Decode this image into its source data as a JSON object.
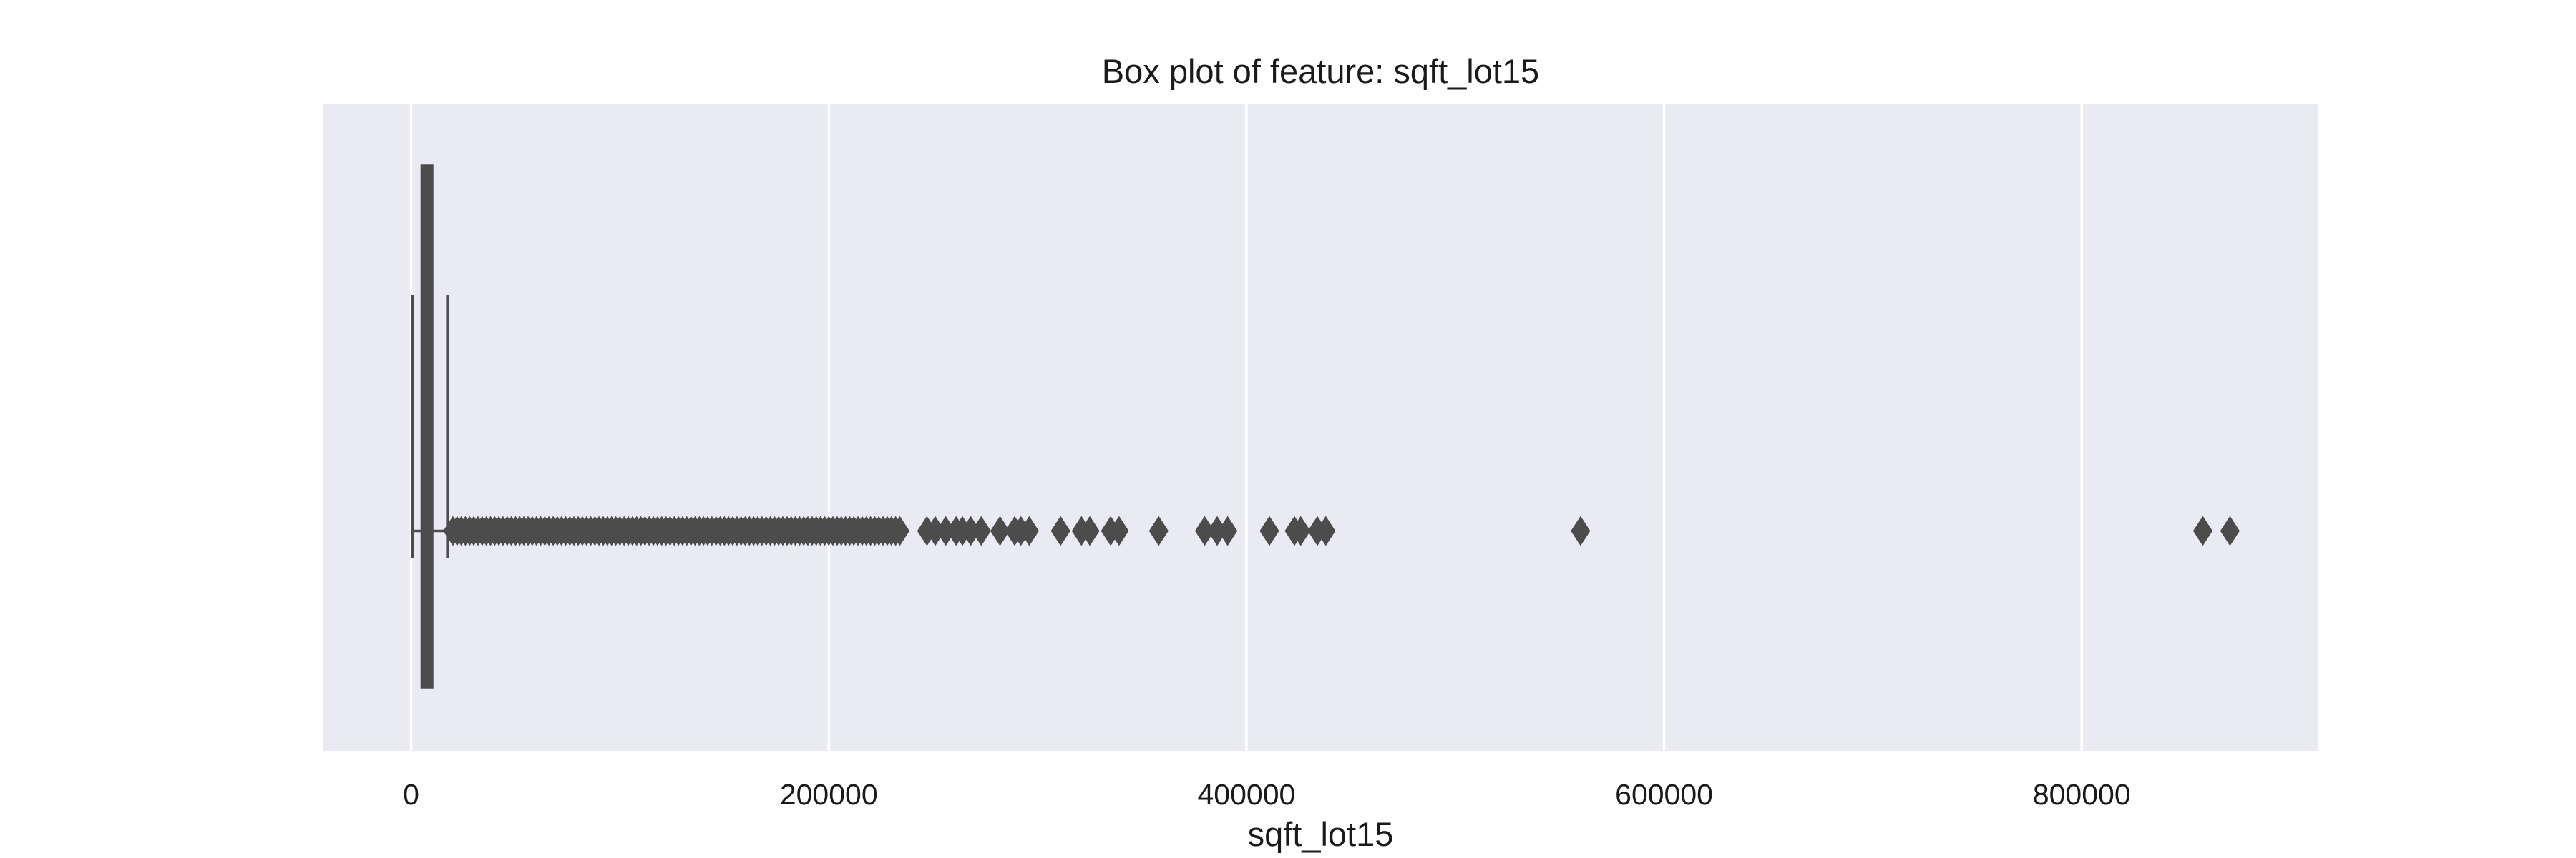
{
  "chart_data": {
    "type": "box",
    "title": "Box plot of feature: sqft_lot15",
    "xlabel": "sqft_lot15",
    "ylabel": "",
    "xlim": [
      -42000,
      913000
    ],
    "xticks": [
      0,
      200000,
      400000,
      600000,
      800000
    ],
    "xtick_labels": [
      "0",
      "200000",
      "400000",
      "600000",
      "800000"
    ],
    "grid": true,
    "orientation": "horizontal",
    "colors": {
      "plot_background": "#eaeaf2",
      "grid": "#ffffff",
      "box_fill": "#4c4c4c",
      "box_edge": "#4c4c4c",
      "outlier": "#4c4c4c",
      "text": "#1a1a1a"
    },
    "box": {
      "whisker_low": 651,
      "q1": 5100,
      "median": 7620,
      "q3": 10083,
      "whisker_high": 17500
    },
    "outliers": [
      20000,
      22000,
      24000,
      26000,
      28000,
      30000,
      32000,
      34000,
      36000,
      38000,
      40000,
      42000,
      44000,
      46000,
      48000,
      50000,
      52000,
      54000,
      56000,
      58000,
      60000,
      62000,
      64000,
      66000,
      68000,
      70000,
      72000,
      74000,
      76000,
      78000,
      80000,
      82000,
      84000,
      86000,
      88000,
      90000,
      92000,
      94000,
      96000,
      98000,
      100000,
      102000,
      104000,
      106000,
      108000,
      110000,
      112000,
      114000,
      116000,
      118000,
      120000,
      122000,
      124000,
      126000,
      128000,
      130000,
      132000,
      134000,
      136000,
      138000,
      140000,
      142000,
      144000,
      146000,
      148000,
      150000,
      152000,
      154000,
      156000,
      158000,
      160000,
      162000,
      164000,
      166000,
      168000,
      170000,
      172000,
      174000,
      176000,
      178000,
      180000,
      182000,
      184000,
      186000,
      188000,
      190000,
      192000,
      194000,
      196000,
      198000,
      200000,
      202000,
      204000,
      206000,
      208000,
      210000,
      212000,
      214000,
      216000,
      218000,
      220000,
      222000,
      224000,
      226000,
      228000,
      230000,
      232000,
      234000,
      247000,
      251000,
      256000,
      261000,
      264000,
      268000,
      273000,
      282000,
      289000,
      292000,
      296000,
      311000,
      321000,
      325000,
      335000,
      339000,
      358000,
      380000,
      386000,
      391000,
      411000,
      423000,
      426000,
      434000,
      438000,
      560000,
      858000,
      871000
    ]
  }
}
